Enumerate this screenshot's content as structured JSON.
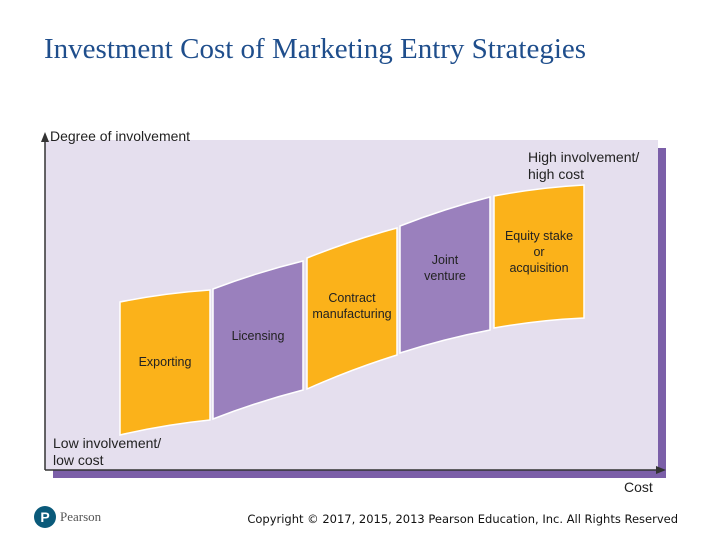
{
  "title": "Investment Cost of Marketing Entry Strategies",
  "diagram": {
    "y_axis_label": "Degree of involvement",
    "x_axis_label": "Cost",
    "high_label": [
      "High involvement/",
      "high cost"
    ],
    "low_label": [
      "Low involvement/",
      "low cost"
    ],
    "strategies": [
      {
        "lines": [
          "Exporting"
        ],
        "color": "#fbb21a"
      },
      {
        "lines": [
          "Licensing"
        ],
        "color": "#9a80bd"
      },
      {
        "lines": [
          "Contract",
          "manufacturing"
        ],
        "color": "#fbb21a"
      },
      {
        "lines": [
          "Joint",
          "venture"
        ],
        "color": "#9a80bd"
      },
      {
        "lines": [
          "Equity stake",
          "or",
          "acquisition"
        ],
        "color": "#fbb21a"
      }
    ],
    "colors": {
      "background": "#e5dfee",
      "shadow": "#7b5fa8",
      "orange": "#fbb21a",
      "purple": "#9a80bd"
    }
  },
  "footer": {
    "logo_letter": "P",
    "logo_text": "Pearson",
    "copyright": "Copyright © 2017, 2015, 2013 Pearson Education, Inc. All Rights Reserved"
  }
}
